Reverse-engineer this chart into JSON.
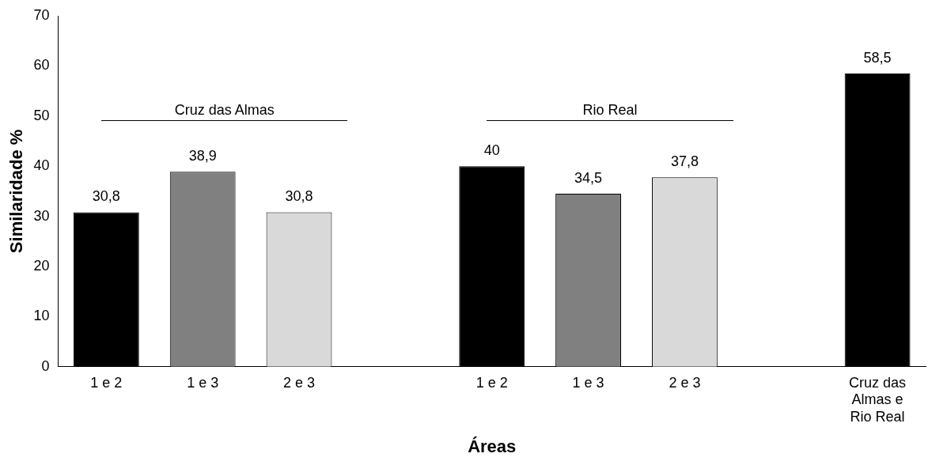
{
  "chart_data": {
    "type": "bar",
    "xlabel": "Áreas",
    "ylabel": "Similaridade %",
    "categories": [
      "1 e 2",
      "1 e 3",
      "2 e 3",
      null,
      "1 e 2",
      "1 e 3",
      "2 e 3",
      null,
      "Cruz das Almas e Rio Real"
    ],
    "values": [
      30.8,
      38.9,
      30.8,
      null,
      40,
      34.5,
      37.8,
      null,
      58.5
    ],
    "colors": [
      "#000000",
      "#808080",
      "#d9d9d9",
      "#ffffff",
      "#000000",
      "#808080",
      "#d9d9d9",
      "#ffffff",
      "#000000"
    ],
    "ylim": [
      0,
      70
    ],
    "yticks": [
      0,
      10,
      20,
      30,
      40,
      50,
      60,
      70
    ],
    "value_labels": [
      "30,8",
      "38,9",
      "30,8",
      null,
      "40",
      "34,5",
      "37,8",
      null,
      "58,5"
    ],
    "annotations": [
      "Cruz das Almas",
      "Rio Real"
    ],
    "grid": false,
    "legend": false
  }
}
